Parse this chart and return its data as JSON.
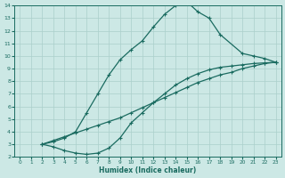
{
  "xlabel": "Humidex (Indice chaleur)",
  "bg_color": "#cce8e5",
  "grid_color": "#aacfcb",
  "line_color": "#1a6b60",
  "xlim": [
    -0.5,
    23.5
  ],
  "ylim": [
    2,
    14
  ],
  "xticks": [
    0,
    1,
    2,
    3,
    4,
    5,
    6,
    7,
    8,
    9,
    10,
    11,
    12,
    13,
    14,
    15,
    16,
    17,
    18,
    19,
    20,
    21,
    22,
    23
  ],
  "yticks": [
    2,
    3,
    4,
    5,
    6,
    7,
    8,
    9,
    10,
    11,
    12,
    13,
    14
  ],
  "line1_x": [
    2,
    3,
    4,
    5,
    6,
    7,
    8,
    9,
    10,
    11,
    12,
    13,
    14,
    15,
    16,
    17,
    18,
    20,
    21,
    22,
    23
  ],
  "line1_y": [
    3,
    3.2,
    3.5,
    4.0,
    5.5,
    7.0,
    8.5,
    9.7,
    10.5,
    11.2,
    12.3,
    13.3,
    14.0,
    14.3,
    13.5,
    13.0,
    11.7,
    10.2,
    10.0,
    9.8,
    9.5
  ],
  "line2_x": [
    2,
    3,
    4,
    5,
    6,
    7,
    8,
    9,
    10,
    11,
    12,
    13,
    14,
    15,
    16,
    17,
    18,
    19,
    20,
    21,
    22,
    23
  ],
  "line2_y": [
    3,
    3.3,
    3.6,
    3.9,
    4.2,
    4.5,
    4.8,
    5.1,
    5.5,
    5.9,
    6.3,
    6.7,
    7.1,
    7.5,
    7.9,
    8.2,
    8.5,
    8.7,
    9.0,
    9.2,
    9.4,
    9.5
  ],
  "line3_x": [
    2,
    3,
    4,
    5,
    6,
    7,
    8,
    9,
    10,
    11,
    12,
    13,
    14,
    15,
    16,
    17,
    18,
    19,
    20,
    21,
    22,
    23
  ],
  "line3_y": [
    3,
    2.8,
    2.5,
    2.3,
    2.2,
    2.3,
    2.7,
    3.5,
    4.7,
    5.5,
    6.3,
    7.0,
    7.7,
    8.2,
    8.6,
    8.9,
    9.1,
    9.2,
    9.3,
    9.4,
    9.45,
    9.5
  ]
}
